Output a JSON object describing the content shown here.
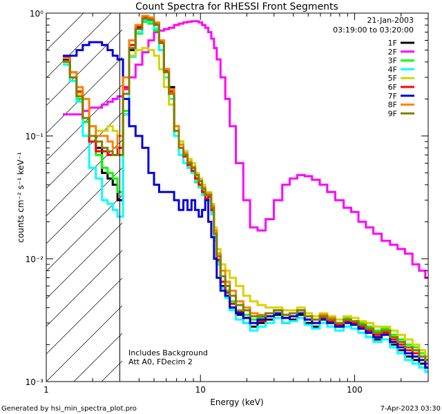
{
  "chart_data": {
    "type": "line",
    "title": "Count Spectra for RHESSI Front Segments",
    "xlabel": "Energy (keV)",
    "ylabel": "counts cm⁻² s⁻¹ keV⁻¹",
    "xscale": "log",
    "yscale": "log",
    "xlim": [
      1,
      300
    ],
    "ylim": [
      0.001,
      1.0
    ],
    "x_tick_labels": [
      {
        "value": 1,
        "label": "1"
      },
      {
        "value": 10,
        "label": "10"
      },
      {
        "value": 100,
        "label": "100"
      }
    ],
    "y_tick_labels": [
      {
        "value": 1,
        "label": "10⁰"
      },
      {
        "value": 0.1,
        "label": "10⁻¹"
      },
      {
        "value": 0.01,
        "label": "10⁻²"
      },
      {
        "value": 0.001,
        "label": "10⁻³"
      }
    ],
    "date": "21-Jan-2003",
    "time_range": "03:19:00 to 03:20:00",
    "annotations": [
      "Includes Background",
      "Att A0, FDecim 2"
    ],
    "hatched_region_max_keV": 3.0,
    "x": [
      1.35,
      1.5,
      1.65,
      1.8,
      2.0,
      2.2,
      2.4,
      2.6,
      2.8,
      3.0,
      3.3,
      3.6,
      4.0,
      4.4,
      4.8,
      5.2,
      5.6,
      6.0,
      6.5,
      7.0,
      7.5,
      8.0,
      8.5,
      9.0,
      9.5,
      10.0,
      10.5,
      11.0,
      11.5,
      12.0,
      12.5,
      13.0,
      14.0,
      15.0,
      16.0,
      18.0,
      20.0,
      22.0,
      25.0,
      28.0,
      32.0,
      36.0,
      40.0,
      45.0,
      50.0,
      56.0,
      63.0,
      70.0,
      80.0,
      90.0,
      100.0,
      112.0,
      125.0,
      140.0,
      160.0,
      180.0,
      200.0,
      225.0,
      250.0,
      275.0,
      300.0
    ],
    "series": [
      {
        "name": "1F",
        "color": "#000000",
        "values": [
          0.42,
          0.3,
          0.22,
          0.14,
          0.1,
          0.08,
          0.05,
          0.045,
          0.04,
          0.03,
          0.15,
          0.5,
          0.75,
          0.9,
          0.88,
          0.82,
          0.6,
          0.35,
          0.25,
          0.12,
          0.09,
          0.075,
          0.06,
          0.055,
          0.045,
          0.04,
          0.035,
          0.03,
          0.032,
          0.025,
          0.015,
          0.009,
          0.006,
          0.005,
          0.004,
          0.0035,
          0.003,
          0.0028,
          0.003,
          0.0032,
          0.0035,
          0.003,
          0.0032,
          0.0035,
          0.003,
          0.0028,
          0.0032,
          0.003,
          0.0028,
          0.0032,
          0.003,
          0.0027,
          0.0025,
          0.0022,
          0.0025,
          0.002,
          0.0018,
          0.0016,
          0.0015,
          0.0014,
          0.0013
        ]
      },
      {
        "name": "2F",
        "color": "#ff00ff",
        "values": [
          0.15,
          0.15,
          0.15,
          0.16,
          0.17,
          0.17,
          0.18,
          0.19,
          0.2,
          0.21,
          0.24,
          0.3,
          0.38,
          0.48,
          0.6,
          0.7,
          0.72,
          0.74,
          0.76,
          0.8,
          0.82,
          0.84,
          0.85,
          0.86,
          0.86,
          0.84,
          0.8,
          0.76,
          0.7,
          0.62,
          0.52,
          0.42,
          0.3,
          0.2,
          0.12,
          0.06,
          0.03,
          0.018,
          0.017,
          0.021,
          0.03,
          0.04,
          0.045,
          0.048,
          0.047,
          0.044,
          0.04,
          0.035,
          0.03,
          0.026,
          0.024,
          0.02,
          0.018,
          0.016,
          0.014,
          0.013,
          0.012,
          0.011,
          0.009,
          0.008,
          0.007
        ]
      },
      {
        "name": "3F",
        "color": "#00ff00",
        "values": [
          0.4,
          0.3,
          0.2,
          0.13,
          0.09,
          0.07,
          0.055,
          0.05,
          0.045,
          0.035,
          0.16,
          0.45,
          0.68,
          0.85,
          0.82,
          0.72,
          0.5,
          0.3,
          0.2,
          0.1,
          0.07,
          0.06,
          0.055,
          0.05,
          0.042,
          0.038,
          0.034,
          0.03,
          0.03,
          0.024,
          0.015,
          0.0095,
          0.0065,
          0.0055,
          0.0045,
          0.0038,
          0.0035,
          0.0032,
          0.0033,
          0.0036,
          0.0038,
          0.0035,
          0.0036,
          0.0038,
          0.0034,
          0.0032,
          0.0035,
          0.0033,
          0.003,
          0.0033,
          0.0031,
          0.003,
          0.0028,
          0.0026,
          0.0027,
          0.0024,
          0.0022,
          0.002,
          0.0019,
          0.0017,
          0.0015
        ]
      },
      {
        "name": "4F",
        "color": "#00ffff",
        "values": [
          0.38,
          0.28,
          0.19,
          0.1,
          0.055,
          0.045,
          0.03,
          0.028,
          0.025,
          0.022,
          0.15,
          0.44,
          0.7,
          0.88,
          0.85,
          0.75,
          0.5,
          0.3,
          0.2,
          0.1,
          0.07,
          0.06,
          0.055,
          0.05,
          0.043,
          0.038,
          0.033,
          0.03,
          0.03,
          0.023,
          0.014,
          0.009,
          0.0058,
          0.0048,
          0.0038,
          0.0032,
          0.003,
          0.0026,
          0.0028,
          0.003,
          0.0033,
          0.003,
          0.0031,
          0.0033,
          0.0029,
          0.0027,
          0.003,
          0.0028,
          0.0026,
          0.0028,
          0.0027,
          0.0025,
          0.0023,
          0.0021,
          0.0022,
          0.0019,
          0.0017,
          0.0015,
          0.0014,
          0.0013,
          0.0012
        ]
      },
      {
        "name": "5F",
        "color": "#d4d400",
        "values": [
          0.4,
          0.3,
          0.22,
          0.14,
          0.12,
          0.11,
          0.11,
          0.12,
          0.11,
          0.1,
          0.3,
          0.45,
          0.5,
          0.52,
          0.5,
          0.45,
          0.35,
          0.25,
          0.18,
          0.12,
          0.09,
          0.075,
          0.065,
          0.06,
          0.05,
          0.045,
          0.04,
          0.035,
          0.035,
          0.028,
          0.018,
          0.012,
          0.009,
          0.008,
          0.007,
          0.006,
          0.005,
          0.0045,
          0.0042,
          0.004,
          0.004,
          0.0038,
          0.0038,
          0.004,
          0.0036,
          0.0034,
          0.0036,
          0.0034,
          0.0032,
          0.0034,
          0.0033,
          0.0031,
          0.003,
          0.0028,
          0.0028,
          0.0026,
          0.0024,
          0.0022,
          0.002,
          0.0018,
          0.0016
        ]
      },
      {
        "name": "6F",
        "color": "#ff0000",
        "values": [
          0.44,
          0.33,
          0.23,
          0.14,
          0.09,
          0.075,
          0.075,
          0.07,
          0.07,
          0.08,
          0.25,
          0.55,
          0.78,
          0.92,
          0.9,
          0.82,
          0.58,
          0.34,
          0.23,
          0.11,
          0.08,
          0.068,
          0.058,
          0.052,
          0.045,
          0.04,
          0.035,
          0.031,
          0.032,
          0.025,
          0.016,
          0.0098,
          0.0065,
          0.0053,
          0.0043,
          0.0037,
          0.0033,
          0.003,
          0.0031,
          0.0034,
          0.0036,
          0.0033,
          0.0034,
          0.0036,
          0.0032,
          0.003,
          0.0033,
          0.0031,
          0.0029,
          0.0031,
          0.003,
          0.0028,
          0.0026,
          0.0024,
          0.0025,
          0.0022,
          0.002,
          0.0018,
          0.0017,
          0.0016,
          0.0014
        ]
      },
      {
        "name": "7F",
        "color": "#0000dd",
        "values": [
          0.45,
          0.45,
          0.5,
          0.55,
          0.58,
          0.58,
          0.55,
          0.5,
          0.45,
          0.42,
          0.2,
          0.12,
          0.1,
          0.08,
          0.05,
          0.04,
          0.035,
          0.035,
          0.035,
          0.03,
          0.025,
          0.03,
          0.025,
          0.03,
          0.025,
          0.022,
          0.025,
          0.03,
          0.02,
          0.015,
          0.01,
          0.007,
          0.0055,
          0.005,
          0.004,
          0.0036,
          0.0033,
          0.003,
          0.0032,
          0.0034,
          0.0036,
          0.0033,
          0.0034,
          0.0036,
          0.0032,
          0.003,
          0.0032,
          0.003,
          0.0028,
          0.003,
          0.0029,
          0.0027,
          0.0025,
          0.0023,
          0.0024,
          0.0021,
          0.0019,
          0.0017,
          0.0016,
          0.0015,
          0.0013
        ]
      },
      {
        "name": "8F",
        "color": "#ff8000",
        "values": [
          0.43,
          0.33,
          0.25,
          0.2,
          0.12,
          0.1,
          0.1,
          0.09,
          0.08,
          0.1,
          0.3,
          0.6,
          0.8,
          0.95,
          0.92,
          0.84,
          0.6,
          0.35,
          0.24,
          0.12,
          0.085,
          0.072,
          0.062,
          0.056,
          0.048,
          0.043,
          0.038,
          0.034,
          0.034,
          0.027,
          0.017,
          0.011,
          0.008,
          0.0065,
          0.0055,
          0.0045,
          0.004,
          0.0036,
          0.0035,
          0.0036,
          0.0038,
          0.0035,
          0.0036,
          0.0038,
          0.0034,
          0.0032,
          0.0035,
          0.0033,
          0.003,
          0.0032,
          0.0031,
          0.0029,
          0.0027,
          0.0025,
          0.0026,
          0.0023,
          0.0021,
          0.0019,
          0.0018,
          0.0016,
          0.0015
        ]
      },
      {
        "name": "9F",
        "color": "#808000",
        "values": [
          0.4,
          0.3,
          0.21,
          0.14,
          0.1,
          0.09,
          0.08,
          0.075,
          0.07,
          0.07,
          0.22,
          0.52,
          0.74,
          0.9,
          0.88,
          0.8,
          0.57,
          0.33,
          0.22,
          0.11,
          0.08,
          0.07,
          0.06,
          0.055,
          0.048,
          0.043,
          0.037,
          0.033,
          0.033,
          0.026,
          0.016,
          0.0105,
          0.0072,
          0.006,
          0.005,
          0.0042,
          0.0038,
          0.0034,
          0.0034,
          0.0036,
          0.0038,
          0.0035,
          0.0036,
          0.0038,
          0.0034,
          0.0032,
          0.0034,
          0.0032,
          0.003,
          0.0032,
          0.0031,
          0.0029,
          0.0027,
          0.0025,
          0.0026,
          0.0023,
          0.0021,
          0.0019,
          0.0018,
          0.0016,
          0.0015
        ]
      }
    ]
  },
  "footer": {
    "generated_by": "Generated by hsi_min_spectra_plot.pro",
    "timestamp": "7-Apr-2023 03:30"
  }
}
